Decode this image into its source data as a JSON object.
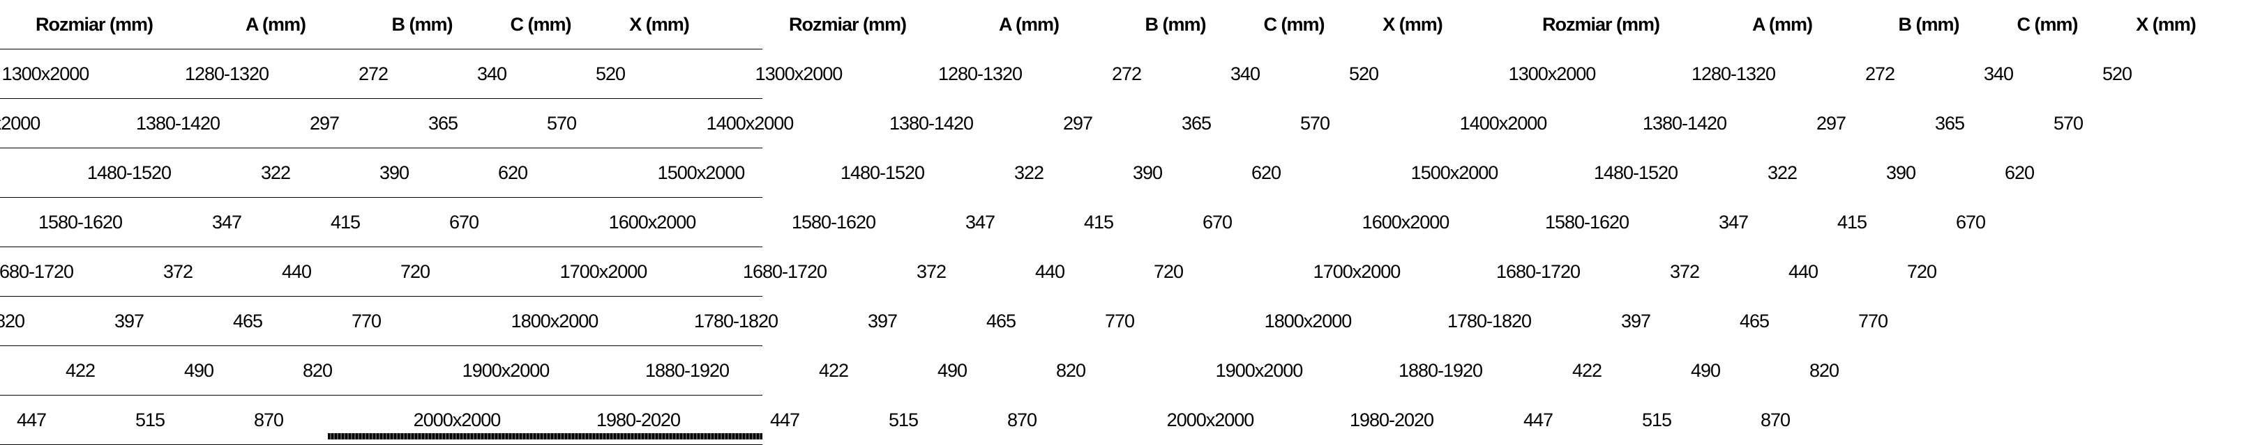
{
  "table": {
    "headers": [
      "Rozmiar (mm)",
      "A (mm)",
      "B (mm)",
      "C (mm)",
      "X (mm)"
    ],
    "rows": [
      [
        "1300x2000",
        "1280-1320",
        "272",
        "340",
        "520"
      ],
      [
        "1400x2000",
        "1380-1420",
        "297",
        "365",
        "570"
      ],
      [
        "1500x2000",
        "1480-1520",
        "322",
        "390",
        "620"
      ],
      [
        "1600x2000",
        "1580-1620",
        "347",
        "415",
        "670"
      ],
      [
        "1700x2000",
        "1680-1720",
        "372",
        "440",
        "720"
      ],
      [
        "1800x2000",
        "1780-1820",
        "397",
        "465",
        "770"
      ],
      [
        "1900x2000",
        "1880-1920",
        "422",
        "490",
        "820"
      ],
      [
        "2000x2000",
        "1980-2020",
        "447",
        "515",
        "870"
      ]
    ]
  }
}
